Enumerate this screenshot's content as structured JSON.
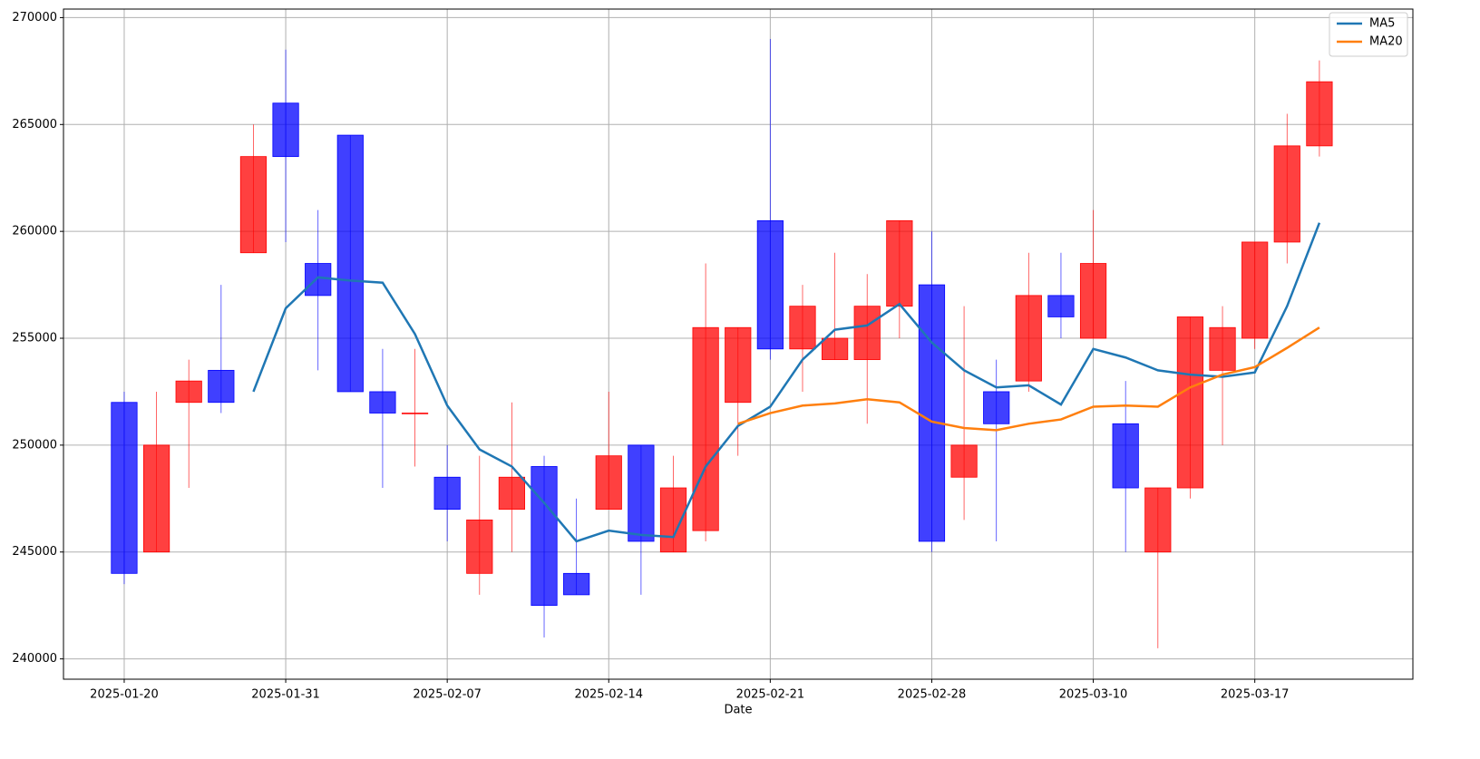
{
  "chart_data": {
    "type": "candlestick",
    "xlabel": "Date",
    "categories": [
      "2025-01-20",
      null,
      null,
      null,
      null,
      "2025-01-31",
      null,
      null,
      null,
      null,
      "2025-02-07",
      null,
      null,
      null,
      null,
      "2025-02-14",
      null,
      null,
      null,
      null,
      "2025-02-21",
      null,
      null,
      null,
      null,
      "2025-02-28",
      null,
      null,
      null,
      null,
      "2025-03-10",
      null,
      null,
      null,
      null,
      "2025-03-17",
      null,
      null
    ],
    "open": [
      252000,
      245000,
      252000,
      253500,
      259000,
      266000,
      258500,
      264500,
      252500,
      251500,
      248500,
      244000,
      247000,
      249000,
      244000,
      247000,
      250000,
      245000,
      246000,
      252000,
      260500,
      254500,
      254000,
      254000,
      256500,
      257500,
      248500,
      252500,
      253000,
      257000,
      255000,
      251000,
      245000,
      248000,
      253500,
      255000,
      259500,
      264000
    ],
    "high": [
      252500,
      252500,
      254000,
      257500,
      265000,
      268500,
      261000,
      264500,
      254500,
      254500,
      250000,
      249500,
      252000,
      249500,
      247500,
      252500,
      250000,
      249500,
      258500,
      255500,
      269000,
      257500,
      259000,
      258000,
      260500,
      260000,
      256500,
      254000,
      259000,
      259000,
      261000,
      253000,
      248000,
      256000,
      256500,
      259500,
      265500,
      268000
    ],
    "low": [
      243500,
      245000,
      248000,
      251500,
      259000,
      259500,
      253500,
      252500,
      248000,
      249000,
      245500,
      243000,
      245000,
      241000,
      243000,
      247000,
      243000,
      245000,
      245500,
      249500,
      254000,
      252500,
      254000,
      251000,
      255000,
      245000,
      246500,
      245500,
      252500,
      255000,
      255000,
      245000,
      240500,
      247500,
      250000,
      254500,
      258500,
      263500
    ],
    "close": [
      244000,
      250000,
      253000,
      252000,
      263500,
      263500,
      257000,
      252500,
      251500,
      251500,
      247000,
      246500,
      248500,
      242500,
      243000,
      249500,
      245500,
      248000,
      255500,
      255500,
      254500,
      256500,
      255000,
      256500,
      260500,
      245500,
      250000,
      251000,
      257000,
      256000,
      258500,
      248000,
      248000,
      256000,
      255500,
      259500,
      264000,
      267000
    ],
    "up_color": "#ff0000",
    "down_color": "#0000ff",
    "series": [
      {
        "name": "MA5",
        "color": "#1f77b4",
        "values": [
          null,
          null,
          null,
          null,
          252500,
          256400,
          257850,
          257700,
          257600,
          255200,
          251850,
          249800,
          249000,
          247300,
          245500,
          246000,
          245800,
          245700,
          249000,
          250900,
          251800,
          254000,
          255400,
          255600,
          256600,
          254800,
          253500,
          252700,
          252800,
          251900,
          254500,
          254100,
          253500,
          253300,
          253200,
          253400,
          256500,
          260400
        ]
      },
      {
        "name": "MA20",
        "color": "#ff7f0e",
        "values": [
          null,
          null,
          null,
          null,
          null,
          null,
          null,
          null,
          null,
          null,
          null,
          null,
          null,
          null,
          null,
          null,
          null,
          null,
          null,
          251000,
          251500,
          251850,
          251950,
          252150,
          252000,
          251100,
          250800,
          250700,
          251000,
          251200,
          251800,
          251850,
          251800,
          252700,
          253300,
          253650,
          254550,
          255500
        ]
      }
    ],
    "ylim": [
      239050,
      270400
    ],
    "yticks": [
      240000,
      245000,
      250000,
      255000,
      260000,
      265000,
      270000
    ],
    "grid": true,
    "legend": "upper right"
  }
}
